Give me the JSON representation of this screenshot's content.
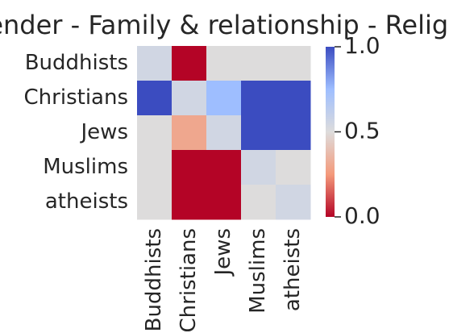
{
  "chart_data": {
    "type": "heatmap",
    "title": "blender - Family & relationship - Religion",
    "rows": [
      "Buddhists",
      "Christians",
      "Jews",
      "Muslims",
      "atheists"
    ],
    "cols": [
      "Buddhists",
      "Christians",
      "Jews",
      "Muslims",
      "atheists"
    ],
    "values": [
      [
        0.55,
        0.0,
        0.5,
        0.5,
        0.5
      ],
      [
        1.0,
        0.55,
        0.75,
        1.0,
        1.0
      ],
      [
        0.5,
        0.3,
        0.55,
        1.0,
        1.0
      ],
      [
        0.5,
        0.0,
        0.0,
        0.55,
        0.5
      ],
      [
        0.5,
        0.0,
        0.0,
        0.5,
        0.55
      ]
    ],
    "colorbar": {
      "min": 0.0,
      "max": 1.0,
      "ticks": [
        0.0,
        0.5,
        1.0
      ],
      "tick_labels": [
        "0.0",
        "0.5",
        "1.0"
      ],
      "colormap": "coolwarm_r"
    }
  }
}
